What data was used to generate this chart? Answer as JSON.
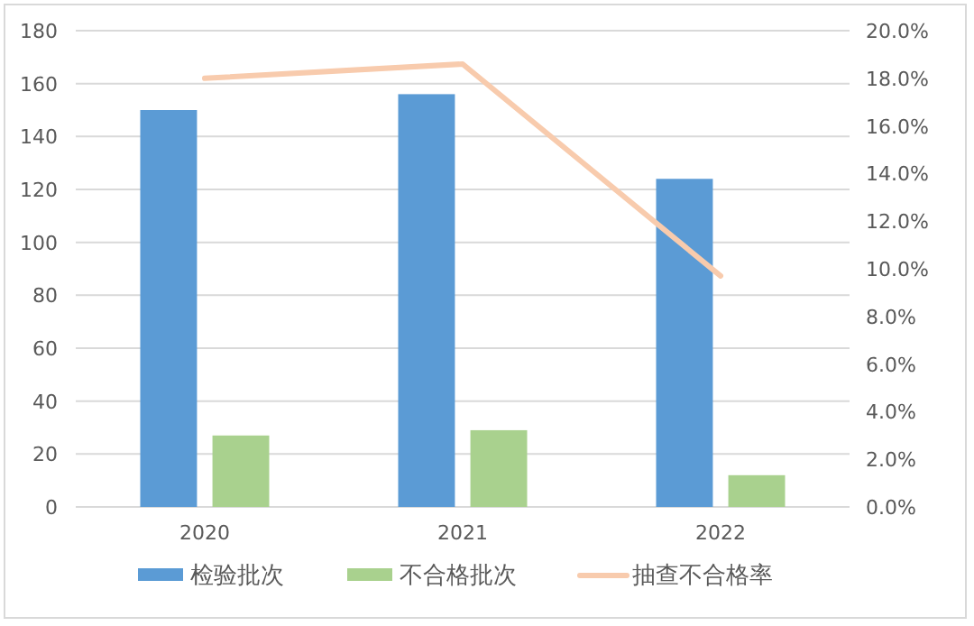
{
  "chart_data": {
    "type": "bar",
    "categories": [
      "2020",
      "2021",
      "2022"
    ],
    "series": [
      {
        "name": "检验批次",
        "color": "#5b9bd5",
        "values": [
          150,
          156,
          124
        ]
      },
      {
        "name": "不合格批次",
        "color": "#a9d18e",
        "values": [
          27,
          29,
          12
        ]
      },
      {
        "name": "抽查不合格率",
        "color": "#f8cbad",
        "type": "line",
        "axis": "y2",
        "values": [
          18.0,
          18.6,
          9.7
        ]
      }
    ],
    "ylim": [
      0,
      180
    ],
    "yticks": [
      0,
      20,
      40,
      60,
      80,
      100,
      120,
      140,
      160,
      180
    ],
    "y2lim": [
      0,
      20
    ],
    "y2ticks": [
      {
        "value": 0,
        "label": "0.0%"
      },
      {
        "value": 2,
        "label": "2.0%"
      },
      {
        "value": 4,
        "label": "4.0%"
      },
      {
        "value": 6,
        "label": "6.0%"
      },
      {
        "value": 8,
        "label": "8.0%"
      },
      {
        "value": 10,
        "label": "10.0%"
      },
      {
        "value": 12,
        "label": "12.0%"
      },
      {
        "value": 14,
        "label": "14.0%"
      },
      {
        "value": 16,
        "label": "16.0%"
      },
      {
        "value": 18,
        "label": "18.0%"
      },
      {
        "value": 20,
        "label": "20.0%"
      }
    ],
    "grid": "y",
    "legend": "bottom"
  }
}
